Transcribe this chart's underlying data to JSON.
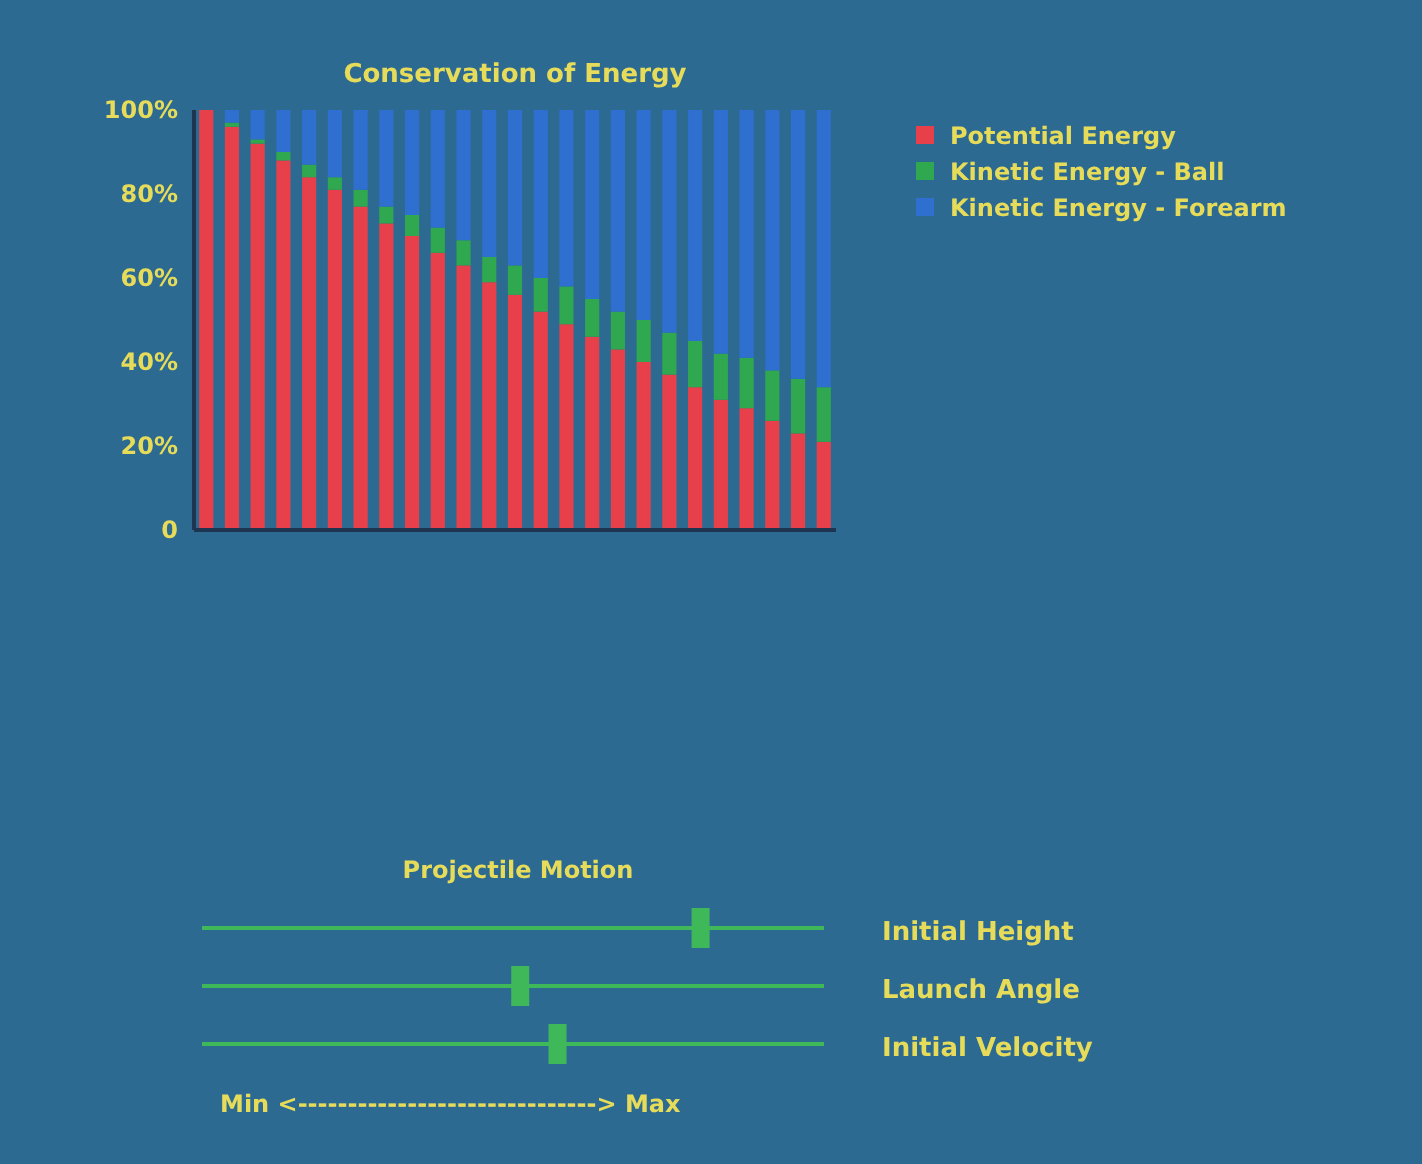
{
  "chart_data": [
    {
      "type": "bar",
      "title": "Conservation of Energy",
      "stacked": true,
      "categories": [
        null,
        null,
        null,
        null,
        null,
        null,
        null,
        null,
        null,
        null,
        null,
        null,
        null,
        null,
        null,
        null,
        null,
        null,
        null,
        null,
        null,
        null,
        null,
        null,
        null
      ],
      "series": [
        {
          "name": "Potential Energy",
          "color": "#e8404a",
          "values": [
            100,
            96,
            92,
            88,
            84,
            81,
            77,
            73,
            70,
            66,
            63,
            59,
            56,
            52,
            49,
            46,
            43,
            40,
            37,
            34,
            31,
            29,
            26,
            23,
            21
          ]
        },
        {
          "name": "Kinetic Energy - Ball",
          "color": "#2fa84f",
          "values": [
            0,
            1,
            1,
            2,
            3,
            3,
            4,
            4,
            5,
            6,
            6,
            6,
            7,
            8,
            9,
            9,
            9,
            10,
            10,
            11,
            11,
            12,
            12,
            13,
            13
          ]
        },
        {
          "name": "Kinetic Energy - Forearm",
          "color": "#2f6fd0",
          "values": [
            0,
            3,
            7,
            10,
            13,
            16,
            19,
            23,
            25,
            28,
            31,
            35,
            37,
            40,
            42,
            45,
            48,
            50,
            53,
            55,
            58,
            59,
            62,
            64,
            66
          ]
        }
      ],
      "ylim": [
        0,
        100
      ],
      "yticks": [
        {
          "value": 0,
          "label": "0"
        },
        {
          "value": 20,
          "label": "20%"
        },
        {
          "value": 40,
          "label": "40%"
        },
        {
          "value": 60,
          "label": "60%"
        },
        {
          "value": 80,
          "label": "80%"
        },
        {
          "value": 100,
          "label": "100%"
        }
      ],
      "tick_labels": "y",
      "legend": "right"
    },
    {
      "type": "other",
      "title": "Projectile Motion",
      "annotations": [
        "Initial Height",
        "Launch Angle",
        "Initial Velocity",
        "Min <------------------------------> Max"
      ]
    }
  ]
}
